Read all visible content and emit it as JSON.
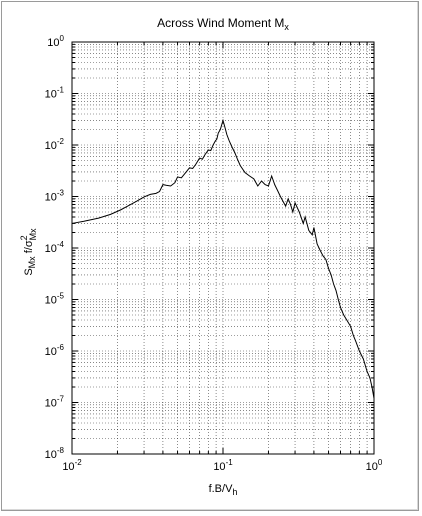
{
  "chart_data": {
    "type": "line",
    "title": "Across Wind Moment M",
    "title_sub": "x",
    "xlabel": "f.B/V",
    "xlabel_sub": "h",
    "ylabel_parts": {
      "s": "S",
      "s_sub": "Mx",
      "mid": " f/σ",
      "sup": "2",
      "sub2": "Mx"
    },
    "x_scale": "log",
    "y_scale": "log",
    "xlim": [
      0.01,
      1
    ],
    "ylim": [
      1e-08,
      1
    ],
    "grid": true,
    "x_ticks": [
      {
        "value": 0.01,
        "base": "10",
        "exp": "-2"
      },
      {
        "value": 0.1,
        "base": "10",
        "exp": "-1"
      },
      {
        "value": 1,
        "base": "10",
        "exp": "0"
      }
    ],
    "y_ticks": [
      {
        "value": 1,
        "base": "10",
        "exp": "0"
      },
      {
        "value": 0.1,
        "base": "10",
        "exp": "-1"
      },
      {
        "value": 0.01,
        "base": "10",
        "exp": "-2"
      },
      {
        "value": 0.001,
        "base": "10",
        "exp": "-3"
      },
      {
        "value": 0.0001,
        "base": "10",
        "exp": "-4"
      },
      {
        "value": 1e-05,
        "base": "10",
        "exp": "-5"
      },
      {
        "value": 1e-06,
        "base": "10",
        "exp": "-6"
      },
      {
        "value": 1e-07,
        "base": "10",
        "exp": "-7"
      },
      {
        "value": 1e-08,
        "base": "10",
        "exp": "-8"
      }
    ],
    "series": [
      {
        "color": "#000000",
        "points": [
          [
            0.01,
            0.0003
          ],
          [
            0.012,
            0.00033
          ],
          [
            0.015,
            0.00038
          ],
          [
            0.018,
            0.00045
          ],
          [
            0.021,
            0.00055
          ],
          [
            0.024,
            0.00068
          ],
          [
            0.027,
            0.00082
          ],
          [
            0.03,
            0.00098
          ],
          [
            0.033,
            0.0011
          ],
          [
            0.036,
            0.00115
          ],
          [
            0.038,
            0.00125
          ],
          [
            0.04,
            0.0017
          ],
          [
            0.042,
            0.00165
          ],
          [
            0.045,
            0.0016
          ],
          [
            0.048,
            0.00185
          ],
          [
            0.05,
            0.0024
          ],
          [
            0.053,
            0.0023
          ],
          [
            0.056,
            0.0028
          ],
          [
            0.06,
            0.0036
          ],
          [
            0.063,
            0.0035
          ],
          [
            0.066,
            0.0042
          ],
          [
            0.07,
            0.0056
          ],
          [
            0.073,
            0.0053
          ],
          [
            0.076,
            0.0065
          ],
          [
            0.08,
            0.008
          ],
          [
            0.083,
            0.0078
          ],
          [
            0.086,
            0.01
          ],
          [
            0.089,
            0.012
          ],
          [
            0.091,
            0.013
          ],
          [
            0.093,
            0.017
          ],
          [
            0.096,
            0.02
          ],
          [
            0.1,
            0.03
          ],
          [
            0.103,
            0.022
          ],
          [
            0.106,
            0.016
          ],
          [
            0.11,
            0.012
          ],
          [
            0.115,
            0.009
          ],
          [
            0.12,
            0.007
          ],
          [
            0.125,
            0.0052
          ],
          [
            0.13,
            0.004
          ],
          [
            0.14,
            0.0029
          ],
          [
            0.15,
            0.0025
          ],
          [
            0.16,
            0.0022
          ],
          [
            0.17,
            0.0016
          ],
          [
            0.18,
            0.002
          ],
          [
            0.19,
            0.0017
          ],
          [
            0.2,
            0.0016
          ],
          [
            0.21,
            0.0025
          ],
          [
            0.22,
            0.0017
          ],
          [
            0.23,
            0.0013
          ],
          [
            0.24,
            0.001
          ],
          [
            0.25,
            0.0008
          ],
          [
            0.26,
            0.00065
          ],
          [
            0.27,
            0.0009
          ],
          [
            0.28,
            0.0007
          ],
          [
            0.29,
            0.0005
          ],
          [
            0.3,
            0.00075
          ],
          [
            0.32,
            0.0005
          ],
          [
            0.34,
            0.0003
          ],
          [
            0.35,
            0.0004
          ],
          [
            0.37,
            0.00022
          ],
          [
            0.39,
            0.00018
          ],
          [
            0.4,
            0.00025
          ],
          [
            0.42,
            0.00012
          ],
          [
            0.44,
            9e-05
          ],
          [
            0.46,
            7e-05
          ],
          [
            0.48,
            6e-05
          ],
          [
            0.5,
            4e-05
          ],
          [
            0.52,
            3e-05
          ],
          [
            0.54,
            2e-05
          ],
          [
            0.56,
            1.5e-05
          ],
          [
            0.58,
            1e-05
          ],
          [
            0.6,
            7e-06
          ],
          [
            0.63,
            5e-06
          ],
          [
            0.66,
            4e-06
          ],
          [
            0.7,
            3e-06
          ],
          [
            0.73,
            2e-06
          ],
          [
            0.76,
            1.5e-06
          ],
          [
            0.8,
            1e-06
          ],
          [
            0.85,
            7e-07
          ],
          [
            0.9,
            4e-07
          ],
          [
            0.94,
            3e-07
          ],
          [
            0.97,
            2e-07
          ],
          [
            1.0,
            1.2e-07
          ]
        ]
      }
    ]
  }
}
